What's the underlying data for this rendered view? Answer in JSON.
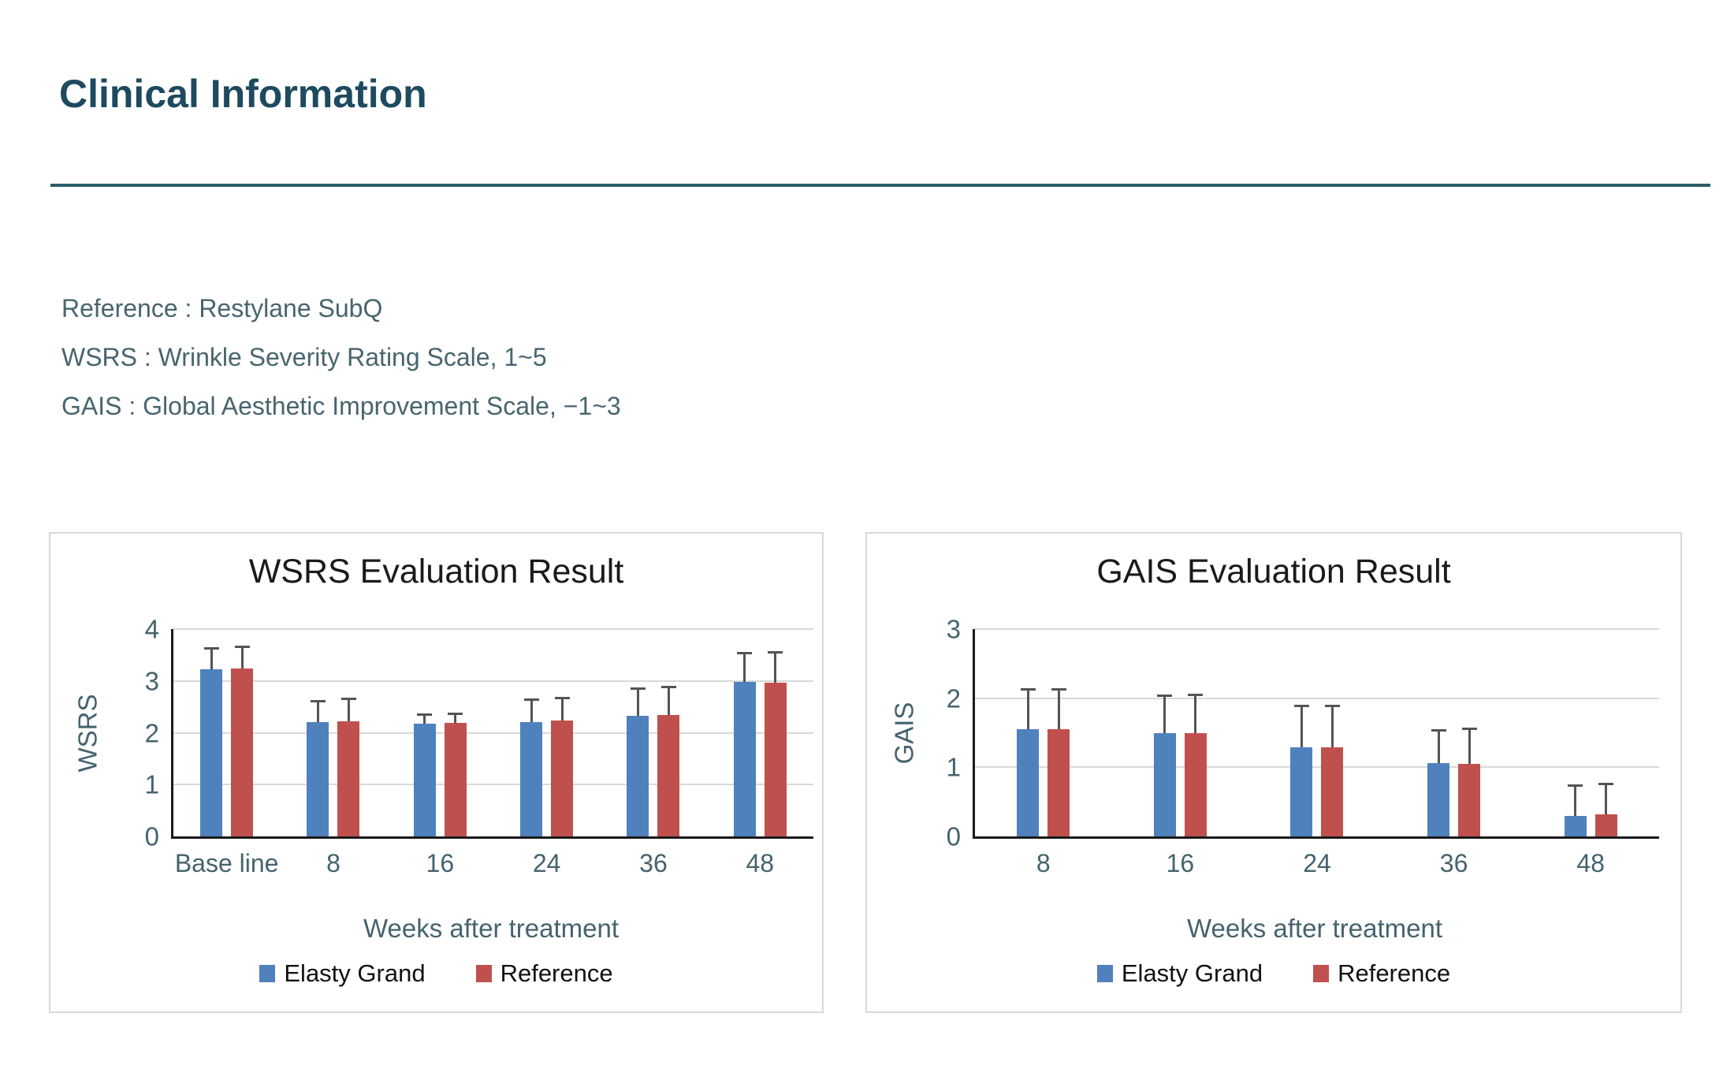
{
  "page": {
    "title": "Clinical Information"
  },
  "notes": {
    "line1": "Reference : Restylane SubQ",
    "line2": "WSRS : Wrinkle Severity Rating Scale, 1~5",
    "line3": "GAIS : Global Aesthetic Improvement Scale, −1~3"
  },
  "colors": {
    "accent_teal": "#1d4a5f",
    "divider_teal": "#2a5c68",
    "series_blue": "#4F81BD",
    "series_red": "#C0504D",
    "error_bar_gray": "#545454",
    "gridline_gray": "#d9d9d9",
    "axis_text_teal": "#44636e"
  },
  "chart_data": [
    {
      "type": "bar",
      "title": "WSRS Evaluation Result",
      "ylabel": "WSRS",
      "xlabel": "Weeks after treatment",
      "categories": [
        "Base line",
        "8",
        "16",
        "24",
        "36",
        "48"
      ],
      "series": [
        {
          "name": "Elasty Grand",
          "color": "#4F81BD",
          "values": [
            3.23,
            2.2,
            2.17,
            2.21,
            2.33,
            2.98
          ],
          "errors_upper": [
            0.42,
            0.43,
            0.2,
            0.45,
            0.54,
            0.58
          ]
        },
        {
          "name": "Reference",
          "color": "#C0504D",
          "values": [
            3.24,
            2.22,
            2.19,
            2.23,
            2.34,
            2.96
          ],
          "errors_upper": [
            0.44,
            0.45,
            0.2,
            0.46,
            0.56,
            0.61
          ]
        }
      ],
      "ylim": [
        0,
        4
      ],
      "yticks": [
        0,
        1,
        2,
        3,
        4
      ],
      "grid": true,
      "legend_position": "bottom"
    },
    {
      "type": "bar",
      "title": "GAIS Evaluation Result",
      "ylabel": "GAIS",
      "xlabel": "Weeks after treatment",
      "categories": [
        "8",
        "16",
        "24",
        "36",
        "48"
      ],
      "series": [
        {
          "name": "Elasty Grand",
          "color": "#4F81BD",
          "values": [
            1.55,
            1.5,
            1.29,
            1.06,
            0.3
          ],
          "errors_upper": [
            0.59,
            0.55,
            0.61,
            0.49,
            0.45
          ]
        },
        {
          "name": "Reference",
          "color": "#C0504D",
          "values": [
            1.55,
            1.5,
            1.29,
            1.05,
            0.32
          ],
          "errors_upper": [
            0.6,
            0.56,
            0.61,
            0.52,
            0.46
          ]
        }
      ],
      "ylim": [
        0,
        3
      ],
      "yticks": [
        0,
        1,
        2,
        3
      ],
      "grid": true,
      "legend_position": "bottom"
    }
  ]
}
